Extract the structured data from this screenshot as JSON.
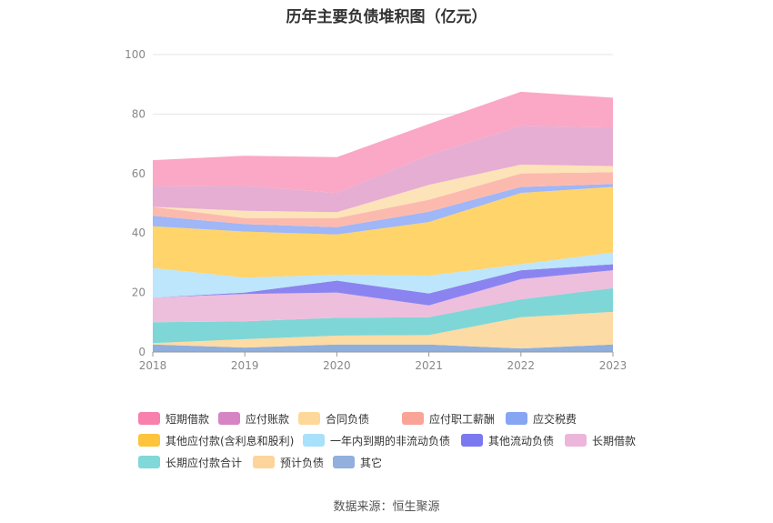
{
  "chart_data": {
    "type": "area",
    "stacked": true,
    "title": "历年主要负债堆积图（亿元）",
    "xlabel": "",
    "ylabel": "",
    "ylim": [
      0,
      100
    ],
    "yticks": [
      0,
      20,
      40,
      60,
      80,
      100
    ],
    "grid": true,
    "categories": [
      "2018",
      "2019",
      "2020",
      "2021",
      "2022",
      "2023"
    ],
    "series": [
      {
        "name": "其它",
        "color": "#8eaedc",
        "values": [
          2.5,
          1.5,
          2.5,
          2.5,
          1.2,
          2.5
        ]
      },
      {
        "name": "预计负债",
        "color": "#fddba4",
        "values": [
          0.5,
          2.8,
          3.0,
          3.2,
          10.5,
          11.0
        ]
      },
      {
        "name": "长期应付款合计",
        "color": "#7fd6d6",
        "values": [
          7.0,
          6.0,
          6.0,
          6.0,
          6.0,
          8.0
        ]
      },
      {
        "name": "长期借款",
        "color": "#eebedd",
        "values": [
          8.3,
          9.2,
          8.5,
          4.0,
          6.8,
          6.0
        ]
      },
      {
        "name": "其他流动负债",
        "color": "#8b84f0",
        "values": [
          0.0,
          0.5,
          4.0,
          4.0,
          3.0,
          2.0
        ]
      },
      {
        "name": "一年内到期的非流动负债",
        "color": "#bde5fb",
        "values": [
          10.0,
          5.0,
          2.0,
          6.0,
          2.0,
          4.0
        ]
      },
      {
        "name": "其他应付款(含利息和股利)",
        "color": "#ffd46b",
        "values": [
          14.0,
          15.5,
          13.5,
          18.0,
          24.0,
          22.0
        ]
      },
      {
        "name": "应交税费",
        "color": "#9fb6f7",
        "values": [
          3.5,
          2.5,
          2.5,
          3.5,
          2.0,
          1.0
        ]
      },
      {
        "name": "应付职工薪酬",
        "color": "#fcbaaf",
        "values": [
          3.0,
          2.0,
          3.0,
          4.0,
          4.5,
          4.0
        ]
      },
      {
        "name": "合同负债",
        "color": "#fde3b8",
        "values": [
          0.0,
          2.5,
          2.0,
          5.0,
          3.0,
          2.0
        ]
      },
      {
        "name": "应付账款",
        "color": "#e6aed2",
        "values": [
          7.0,
          8.5,
          6.5,
          10.0,
          13.0,
          13.0
        ]
      },
      {
        "name": "短期借款",
        "color": "#fba7c6",
        "values": [
          8.7,
          10.0,
          12.0,
          10.5,
          11.5,
          10.0
        ]
      }
    ],
    "legend_position": "bottom"
  },
  "legend": {
    "rows": [
      [
        {
          "label": "短期借款",
          "color": "#f780ac"
        },
        {
          "label": "应付账款",
          "color": "#d685c4"
        },
        {
          "label": "合同负债",
          "color": "#fdd89a"
        },
        {
          "label": "应付职工薪酬",
          "color": "#f9a497"
        },
        {
          "label": "应交税费",
          "color": "#86a5f3"
        }
      ],
      [
        {
          "label": "其他应付款(含利息和股利)",
          "color": "#fec43c"
        },
        {
          "label": "一年内到期的非流动负债",
          "color": "#a9e0fb"
        },
        {
          "label": "其他流动负债",
          "color": "#7b79ef"
        },
        {
          "label": "长期借款",
          "color": "#ecb6da"
        }
      ],
      [
        {
          "label": "长期应付款合计",
          "color": "#80d8d8"
        },
        {
          "label": "预计负债",
          "color": "#fdd59a"
        },
        {
          "label": "其它",
          "color": "#92afdd"
        }
      ]
    ]
  },
  "source": "数据来源：恒生聚源"
}
